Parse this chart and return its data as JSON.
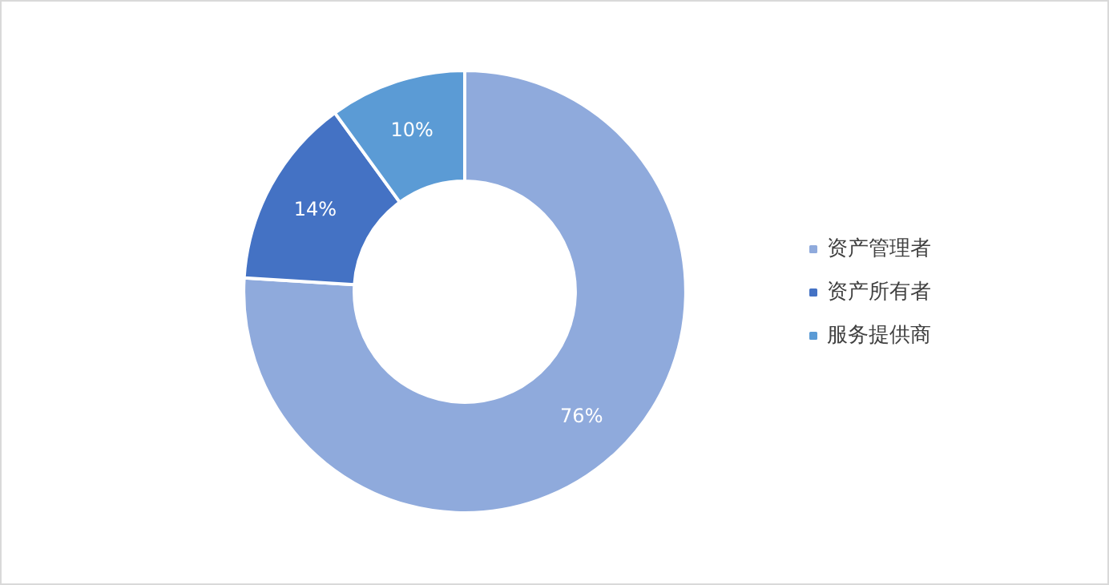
{
  "chart_data": {
    "type": "donut",
    "categories": [
      "资产管理者",
      "资产所有者",
      "服务提供商"
    ],
    "values": [
      76,
      14,
      10
    ],
    "colors": [
      "#8faadc",
      "#4472c4",
      "#5b9bd5"
    ],
    "value_labels": [
      "76%",
      "14%",
      "10%"
    ],
    "legend": "right"
  }
}
